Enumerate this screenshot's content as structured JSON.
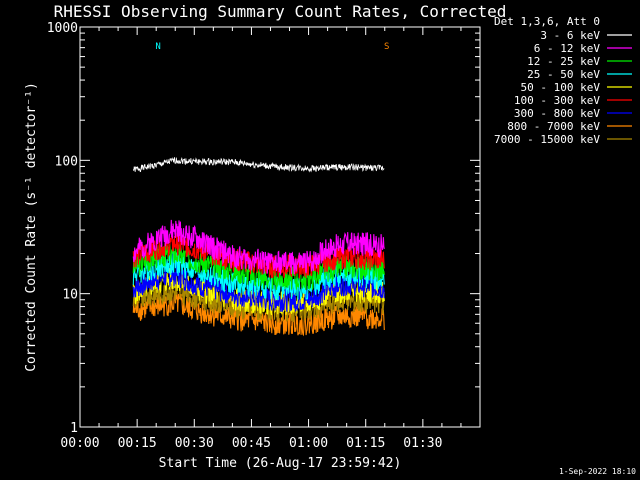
{
  "chart_data": {
    "type": "line",
    "title": "RHESSI Observing Summary Count Rates, Corrected",
    "xlabel": "Start Time (26-Aug-17 23:59:42)",
    "ylabel": "Corrected Count Rate (s⁻¹ detector⁻¹)",
    "yscale": "log",
    "ylim": [
      1,
      1000
    ],
    "xlim_minutes": [
      0,
      105
    ],
    "x_ticks": [
      "00:00",
      "00:15",
      "00:30",
      "00:45",
      "01:00",
      "01:15",
      "01:30"
    ],
    "x_tick_minutes": [
      0,
      15,
      30,
      45,
      60,
      75,
      90
    ],
    "y_ticks": [
      "1",
      "10",
      "100",
      "1000"
    ],
    "y_tick_values": [
      1,
      10,
      100,
      1000
    ],
    "legend_title": "Det 1,3,6, Att 0",
    "legend_position": "top-right",
    "grid": false,
    "series": [
      {
        "name": "3 - 6 keV",
        "color": "#000000",
        "x_minutes": [
          14,
          20,
          25,
          30,
          40,
          50,
          60,
          65,
          70,
          80
        ],
        "values": [
          85,
          92,
          100,
          98,
          97,
          90,
          87,
          88,
          89,
          87
        ]
      },
      {
        "name": "6 - 12 keV",
        "color": "#ff00ff",
        "x_minutes": [
          14,
          20,
          25,
          30,
          40,
          50,
          60,
          65,
          70,
          80
        ],
        "values": [
          20,
          26,
          30,
          26,
          19,
          17,
          17,
          22,
          24,
          23
        ]
      },
      {
        "name": "12 - 25 keV",
        "color": "#00ee00",
        "x_minutes": [
          14,
          20,
          25,
          30,
          40,
          50,
          60,
          65,
          70,
          80
        ],
        "values": [
          16,
          19,
          20,
          18,
          15,
          13,
          13,
          15,
          16,
          15
        ]
      },
      {
        "name": "25 - 50 keV",
        "color": "#00ffff",
        "x_minutes": [
          14,
          20,
          25,
          30,
          40,
          50,
          60,
          65,
          70,
          80
        ],
        "values": [
          14,
          16,
          17,
          15,
          12,
          11,
          11,
          13,
          14,
          13
        ]
      },
      {
        "name": "50 - 100 keV",
        "color": "#ffff00",
        "x_minutes": [
          14,
          20,
          25,
          30,
          40,
          50,
          60,
          65,
          70,
          80
        ],
        "values": [
          10,
          12,
          13,
          11,
          9,
          8.5,
          8.5,
          10,
          10.5,
          10
        ]
      },
      {
        "name": "100 - 300 keV",
        "color": "#ff0000",
        "x_minutes": [
          14,
          20,
          25,
          30,
          40,
          50,
          60,
          65,
          70,
          80
        ],
        "values": [
          19,
          22,
          24,
          22,
          18,
          16,
          16,
          18,
          19,
          18
        ]
      },
      {
        "name": "300 - 800 keV",
        "color": "#0000ff",
        "x_minutes": [
          14,
          20,
          25,
          30,
          40,
          50,
          60,
          65,
          70,
          80
        ],
        "values": [
          11,
          13,
          14,
          12,
          10,
          9,
          9,
          11,
          12,
          11
        ]
      },
      {
        "name": "800 - 7000 keV",
        "color": "#ff8800",
        "x_minutes": [
          14,
          20,
          25,
          30,
          40,
          50,
          60,
          65,
          70,
          80
        ],
        "values": [
          7.5,
          8,
          8.5,
          7.5,
          6.5,
          6,
          6,
          6.5,
          6.8,
          6.5
        ]
      },
      {
        "name": "7000 - 15000 keV",
        "color": "#aa8800",
        "x_minutes": [
          14,
          20,
          25,
          30,
          40,
          50,
          60,
          65,
          70,
          80
        ],
        "values": [
          9,
          10,
          10.5,
          9.5,
          8,
          7.5,
          7.5,
          8.5,
          9,
          8.5
        ]
      }
    ],
    "annotations": [
      {
        "label": "N",
        "color": "#00ffff",
        "x_minutes": 19
      },
      {
        "label": "S",
        "color": "#ff8800",
        "x_minutes": 79
      }
    ]
  },
  "footer_date": "1-Sep-2022 18:10",
  "colors": {
    "background": "#000000",
    "axes": "#ffffff"
  }
}
